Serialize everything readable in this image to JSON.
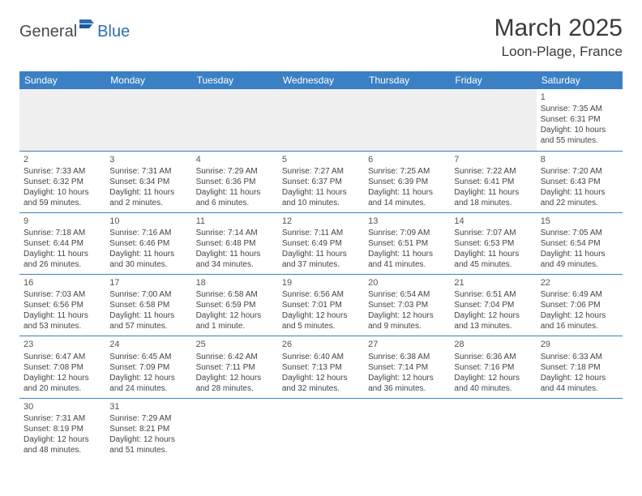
{
  "logo": {
    "part1": "General",
    "part2": "Blue"
  },
  "title": "March 2025",
  "location": "Loon-Plage, France",
  "colors": {
    "header_bg": "#3b7fc4",
    "header_text": "#ffffff",
    "border": "#3b7fc4",
    "text": "#444444",
    "empty_bg": "#efefef",
    "logo_gray": "#4a4a4a",
    "logo_blue": "#2b6fb0"
  },
  "daysOfWeek": [
    "Sunday",
    "Monday",
    "Tuesday",
    "Wednesday",
    "Thursday",
    "Friday",
    "Saturday"
  ],
  "weeks": [
    [
      null,
      null,
      null,
      null,
      null,
      null,
      {
        "n": "1",
        "sr": "Sunrise: 7:35 AM",
        "ss": "Sunset: 6:31 PM",
        "dl": "Daylight: 10 hours and 55 minutes."
      }
    ],
    [
      {
        "n": "2",
        "sr": "Sunrise: 7:33 AM",
        "ss": "Sunset: 6:32 PM",
        "dl": "Daylight: 10 hours and 59 minutes."
      },
      {
        "n": "3",
        "sr": "Sunrise: 7:31 AM",
        "ss": "Sunset: 6:34 PM",
        "dl": "Daylight: 11 hours and 2 minutes."
      },
      {
        "n": "4",
        "sr": "Sunrise: 7:29 AM",
        "ss": "Sunset: 6:36 PM",
        "dl": "Daylight: 11 hours and 6 minutes."
      },
      {
        "n": "5",
        "sr": "Sunrise: 7:27 AM",
        "ss": "Sunset: 6:37 PM",
        "dl": "Daylight: 11 hours and 10 minutes."
      },
      {
        "n": "6",
        "sr": "Sunrise: 7:25 AM",
        "ss": "Sunset: 6:39 PM",
        "dl": "Daylight: 11 hours and 14 minutes."
      },
      {
        "n": "7",
        "sr": "Sunrise: 7:22 AM",
        "ss": "Sunset: 6:41 PM",
        "dl": "Daylight: 11 hours and 18 minutes."
      },
      {
        "n": "8",
        "sr": "Sunrise: 7:20 AM",
        "ss": "Sunset: 6:43 PM",
        "dl": "Daylight: 11 hours and 22 minutes."
      }
    ],
    [
      {
        "n": "9",
        "sr": "Sunrise: 7:18 AM",
        "ss": "Sunset: 6:44 PM",
        "dl": "Daylight: 11 hours and 26 minutes."
      },
      {
        "n": "10",
        "sr": "Sunrise: 7:16 AM",
        "ss": "Sunset: 6:46 PM",
        "dl": "Daylight: 11 hours and 30 minutes."
      },
      {
        "n": "11",
        "sr": "Sunrise: 7:14 AM",
        "ss": "Sunset: 6:48 PM",
        "dl": "Daylight: 11 hours and 34 minutes."
      },
      {
        "n": "12",
        "sr": "Sunrise: 7:11 AM",
        "ss": "Sunset: 6:49 PM",
        "dl": "Daylight: 11 hours and 37 minutes."
      },
      {
        "n": "13",
        "sr": "Sunrise: 7:09 AM",
        "ss": "Sunset: 6:51 PM",
        "dl": "Daylight: 11 hours and 41 minutes."
      },
      {
        "n": "14",
        "sr": "Sunrise: 7:07 AM",
        "ss": "Sunset: 6:53 PM",
        "dl": "Daylight: 11 hours and 45 minutes."
      },
      {
        "n": "15",
        "sr": "Sunrise: 7:05 AM",
        "ss": "Sunset: 6:54 PM",
        "dl": "Daylight: 11 hours and 49 minutes."
      }
    ],
    [
      {
        "n": "16",
        "sr": "Sunrise: 7:03 AM",
        "ss": "Sunset: 6:56 PM",
        "dl": "Daylight: 11 hours and 53 minutes."
      },
      {
        "n": "17",
        "sr": "Sunrise: 7:00 AM",
        "ss": "Sunset: 6:58 PM",
        "dl": "Daylight: 11 hours and 57 minutes."
      },
      {
        "n": "18",
        "sr": "Sunrise: 6:58 AM",
        "ss": "Sunset: 6:59 PM",
        "dl": "Daylight: 12 hours and 1 minute."
      },
      {
        "n": "19",
        "sr": "Sunrise: 6:56 AM",
        "ss": "Sunset: 7:01 PM",
        "dl": "Daylight: 12 hours and 5 minutes."
      },
      {
        "n": "20",
        "sr": "Sunrise: 6:54 AM",
        "ss": "Sunset: 7:03 PM",
        "dl": "Daylight: 12 hours and 9 minutes."
      },
      {
        "n": "21",
        "sr": "Sunrise: 6:51 AM",
        "ss": "Sunset: 7:04 PM",
        "dl": "Daylight: 12 hours and 13 minutes."
      },
      {
        "n": "22",
        "sr": "Sunrise: 6:49 AM",
        "ss": "Sunset: 7:06 PM",
        "dl": "Daylight: 12 hours and 16 minutes."
      }
    ],
    [
      {
        "n": "23",
        "sr": "Sunrise: 6:47 AM",
        "ss": "Sunset: 7:08 PM",
        "dl": "Daylight: 12 hours and 20 minutes."
      },
      {
        "n": "24",
        "sr": "Sunrise: 6:45 AM",
        "ss": "Sunset: 7:09 PM",
        "dl": "Daylight: 12 hours and 24 minutes."
      },
      {
        "n": "25",
        "sr": "Sunrise: 6:42 AM",
        "ss": "Sunset: 7:11 PM",
        "dl": "Daylight: 12 hours and 28 minutes."
      },
      {
        "n": "26",
        "sr": "Sunrise: 6:40 AM",
        "ss": "Sunset: 7:13 PM",
        "dl": "Daylight: 12 hours and 32 minutes."
      },
      {
        "n": "27",
        "sr": "Sunrise: 6:38 AM",
        "ss": "Sunset: 7:14 PM",
        "dl": "Daylight: 12 hours and 36 minutes."
      },
      {
        "n": "28",
        "sr": "Sunrise: 6:36 AM",
        "ss": "Sunset: 7:16 PM",
        "dl": "Daylight: 12 hours and 40 minutes."
      },
      {
        "n": "29",
        "sr": "Sunrise: 6:33 AM",
        "ss": "Sunset: 7:18 PM",
        "dl": "Daylight: 12 hours and 44 minutes."
      }
    ],
    [
      {
        "n": "30",
        "sr": "Sunrise: 7:31 AM",
        "ss": "Sunset: 8:19 PM",
        "dl": "Daylight: 12 hours and 48 minutes."
      },
      {
        "n": "31",
        "sr": "Sunrise: 7:29 AM",
        "ss": "Sunset: 8:21 PM",
        "dl": "Daylight: 12 hours and 51 minutes."
      },
      null,
      null,
      null,
      null,
      null
    ]
  ]
}
